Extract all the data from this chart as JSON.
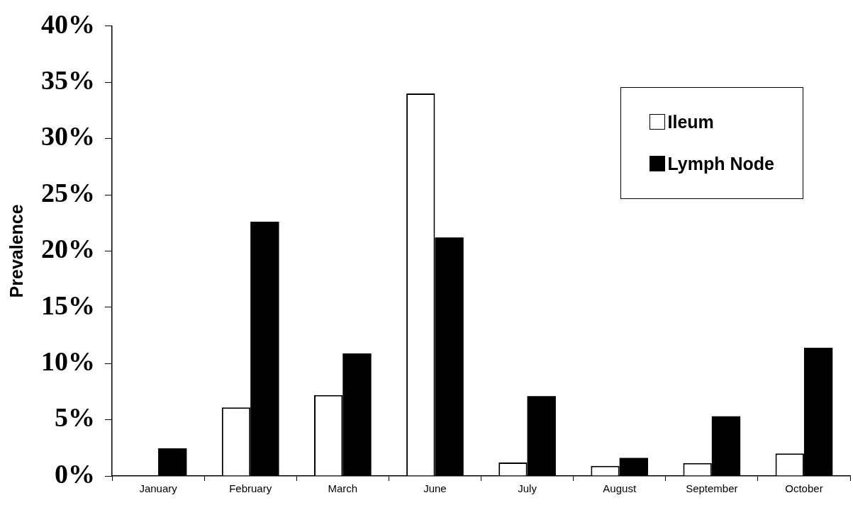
{
  "chart_data": {
    "type": "bar",
    "ylabel": "Prevalence",
    "categories": [
      "January",
      "February",
      "March",
      "June",
      "July",
      "August",
      "September",
      "October"
    ],
    "series": [
      {
        "name": "Ileum",
        "color": "#ffffff",
        "values": [
          0,
          6.1,
          7.2,
          34.0,
          1.2,
          0.9,
          1.15,
          2.0
        ]
      },
      {
        "name": "Lymph Node",
        "color": "#000000",
        "values": [
          2.45,
          22.6,
          10.9,
          21.2,
          7.1,
          1.6,
          5.3,
          11.4
        ]
      }
    ],
    "ylim": [
      0,
      40
    ],
    "yticks": [
      {
        "value": 0,
        "label": "0%"
      },
      {
        "value": 5,
        "label": "5%"
      },
      {
        "value": 10,
        "label": "10%"
      },
      {
        "value": 15,
        "label": "15%"
      },
      {
        "value": 20,
        "label": "20%"
      },
      {
        "value": 25,
        "label": "25%"
      },
      {
        "value": 30,
        "label": "30%"
      },
      {
        "value": 35,
        "label": "35%"
      },
      {
        "value": 40,
        "label": "40%"
      }
    ],
    "grid": false,
    "legend": "top right"
  }
}
